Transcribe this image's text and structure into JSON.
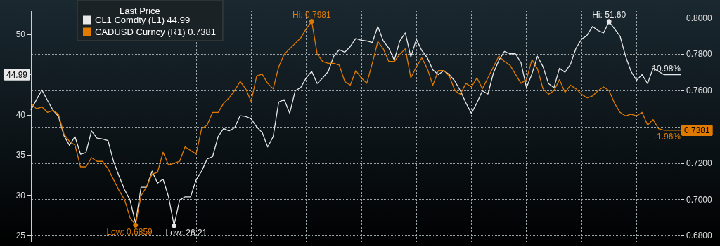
{
  "chart_data": {
    "type": "line",
    "legend_title": "Last Price",
    "legend": "top left",
    "grid": true,
    "tick_labels": "y",
    "marker": "none",
    "line_style": "solid",
    "categories": [
      null,
      null,
      null,
      null,
      null,
      null,
      null,
      null,
      null,
      null,
      null,
      null,
      null,
      null,
      null,
      null,
      null,
      null,
      null,
      null,
      null,
      null,
      null,
      null,
      null,
      null,
      null,
      null,
      null,
      null,
      null,
      null,
      null,
      null,
      null,
      null,
      null,
      null,
      null,
      null,
      null,
      null,
      null,
      null,
      null,
      null,
      null,
      null,
      null,
      null,
      null,
      null,
      null,
      null,
      null,
      null,
      null,
      null,
      null,
      null,
      null,
      null,
      null,
      null,
      null,
      null,
      null,
      null,
      null,
      null,
      null,
      null,
      null,
      null,
      null,
      null,
      null,
      null,
      null,
      null,
      null,
      null,
      null,
      null,
      null,
      null,
      null,
      null,
      null,
      null,
      null,
      null,
      null,
      null,
      null,
      null,
      null,
      null,
      null,
      null,
      null,
      null,
      null,
      null,
      null,
      null,
      null,
      null,
      null,
      null,
      null,
      null,
      null,
      null,
      null,
      null,
      null,
      null,
      null
    ],
    "ylim": [
      24.2,
      52.9
    ],
    "yticks": [
      25,
      30,
      35,
      40,
      {
        "value": 45,
        "label": null
      },
      50
    ],
    "y2lim": [
      0.6767,
      0.8037
    ],
    "y2ticks": [
      {
        "value": 0.68,
        "label": "0.6800"
      },
      {
        "value": 0.7,
        "label": "0.7000"
      },
      {
        "value": 0.72,
        "label": "0.7200"
      },
      {
        "value": 0.74,
        "label": null
      },
      {
        "value": 0.76,
        "label": "0.7600"
      },
      {
        "value": 0.78,
        "label": "0.7800"
      },
      {
        "value": 0.8,
        "label": "0.8000"
      }
    ],
    "series": [
      {
        "name": "CL1 Comdty (L1) 44.99",
        "color": "#e8e8e8",
        "values": [
          40.6,
          41.9,
          43.1,
          41.8,
          40.6,
          39.8,
          37.4,
          36.2,
          37.3,
          35.1,
          35.3,
          38.0,
          37.1,
          37.0,
          36.8,
          34.2,
          32.4,
          30.7,
          29.4,
          26.5,
          31.0,
          31.0,
          33.0,
          31.5,
          32.0,
          29.8,
          26.21,
          29.4,
          29.8,
          29.8,
          31.9,
          33.0,
          34.5,
          34.8,
          37.3,
          38.3,
          38.0,
          38.4,
          39.9,
          39.8,
          39.5,
          38.5,
          37.8,
          36.0,
          37.3,
          41.6,
          41.9,
          40.2,
          43.0,
          43.4,
          44.6,
          45.4,
          43.9,
          44.6,
          45.4,
          47.3,
          48.1,
          47.8,
          48.5,
          49.5,
          49.3,
          49.2,
          49.0,
          51.0,
          49.2,
          48.3,
          46.8,
          49.2,
          50.2,
          47.2,
          49.4,
          48.0,
          47.1,
          45.6,
          45.0,
          45.5,
          45.0,
          44.2,
          43.0,
          41.5,
          40.2,
          41.5,
          43.0,
          42.6,
          45.2,
          46.8,
          47.9,
          47.6,
          47.6,
          46.5,
          43.4,
          45.1,
          47.3,
          46.0,
          43.9,
          43.4,
          45.8,
          45.3,
          46.3,
          48.3,
          49.4,
          49.9,
          51.0,
          50.5,
          50.2,
          51.6,
          50.7,
          49.8,
          47.3,
          45.4,
          44.3,
          45.0,
          43.9,
          45.8,
          45.4,
          44.99,
          44.99,
          44.99,
          44.99
        ],
        "value_labels": [
          null,
          null,
          null,
          null,
          null,
          null,
          null,
          null,
          null,
          null,
          null,
          null,
          null,
          null,
          null,
          null,
          null,
          null,
          null,
          null,
          null,
          null,
          null,
          null,
          null,
          null,
          "Low: 26.21",
          null,
          null,
          null,
          null,
          null,
          null,
          null,
          null,
          null,
          null,
          null,
          null,
          null,
          null,
          null,
          null,
          null,
          null,
          null,
          null,
          null,
          null,
          null,
          null,
          null,
          null,
          null,
          null,
          null,
          null,
          null,
          null,
          null,
          null,
          null,
          null,
          null,
          null,
          null,
          null,
          null,
          null,
          null,
          null,
          null,
          null,
          null,
          null,
          null,
          null,
          null,
          null,
          null,
          null,
          null,
          null,
          null,
          null,
          null,
          null,
          null,
          null,
          null,
          null,
          null,
          null,
          null,
          null,
          null,
          null,
          null,
          null,
          null,
          null,
          null,
          null,
          null,
          null,
          "Hi: 51.60",
          null,
          null,
          null,
          null,
          null,
          null,
          null,
          null,
          null,
          null,
          null,
          null,
          null
        ]
      },
      {
        "name": "CADUSD Curncy (R1) 0.7381",
        "color": "#e07b00",
        "axis": "y2",
        "values": [
          0.753,
          0.75,
          0.751,
          0.748,
          0.749,
          0.747,
          0.736,
          0.732,
          0.73,
          0.718,
          0.718,
          0.723,
          0.721,
          0.721,
          0.717,
          0.711,
          0.705,
          0.7,
          0.69,
          0.6859,
          0.702,
          0.707,
          0.714,
          0.715,
          0.726,
          0.719,
          0.72,
          0.721,
          0.729,
          0.727,
          0.725,
          0.739,
          0.741,
          0.748,
          0.748,
          0.753,
          0.756,
          0.76,
          0.765,
          0.761,
          0.754,
          0.768,
          0.769,
          0.764,
          0.761,
          0.773,
          0.78,
          0.783,
          0.786,
          0.789,
          0.794,
          0.7981,
          0.78,
          0.776,
          0.775,
          0.775,
          0.774,
          0.765,
          0.763,
          0.771,
          0.767,
          0.764,
          0.775,
          0.787,
          0.783,
          0.776,
          0.776,
          0.78,
          0.783,
          0.767,
          0.773,
          0.778,
          0.772,
          0.763,
          0.771,
          0.771,
          0.768,
          0.76,
          0.758,
          0.764,
          0.762,
          0.767,
          0.761,
          0.767,
          0.773,
          0.779,
          0.776,
          0.774,
          0.769,
          0.764,
          0.766,
          0.777,
          0.772,
          0.761,
          0.758,
          0.76,
          0.766,
          0.759,
          0.763,
          0.761,
          0.758,
          0.756,
          0.757,
          0.76,
          0.762,
          0.76,
          0.753,
          0.748,
          0.746,
          0.747,
          0.746,
          0.748,
          0.741,
          0.744,
          0.739,
          0.7381,
          0.7381,
          0.7381,
          0.7381
        ],
        "value_labels": [
          null,
          null,
          null,
          null,
          null,
          null,
          null,
          null,
          null,
          null,
          null,
          null,
          null,
          null,
          null,
          null,
          null,
          null,
          null,
          "Low: 0.6859",
          null,
          null,
          null,
          null,
          null,
          null,
          null,
          null,
          null,
          null,
          null,
          null,
          null,
          null,
          null,
          null,
          null,
          null,
          null,
          null,
          null,
          null,
          null,
          null,
          null,
          null,
          null,
          null,
          null,
          null,
          null,
          "Hi: 0.7981",
          null,
          null,
          null,
          null,
          null,
          null,
          null,
          null,
          null,
          null,
          null,
          null,
          null,
          null,
          null,
          null,
          null,
          null,
          null,
          null,
          null,
          null,
          null,
          null,
          null,
          null,
          null,
          null,
          null,
          null,
          null,
          null,
          null,
          null,
          null,
          null,
          null,
          null,
          null,
          null,
          null,
          null,
          null,
          null,
          null,
          null,
          null,
          null,
          null,
          null,
          null,
          null,
          null,
          null,
          null,
          null,
          null,
          null,
          null,
          null,
          null,
          null,
          null,
          null,
          null,
          null,
          null
        ]
      }
    ],
    "annotations": [
      "44.99",
      "10.98%",
      "0.7381",
      "-1.96%"
    ]
  }
}
